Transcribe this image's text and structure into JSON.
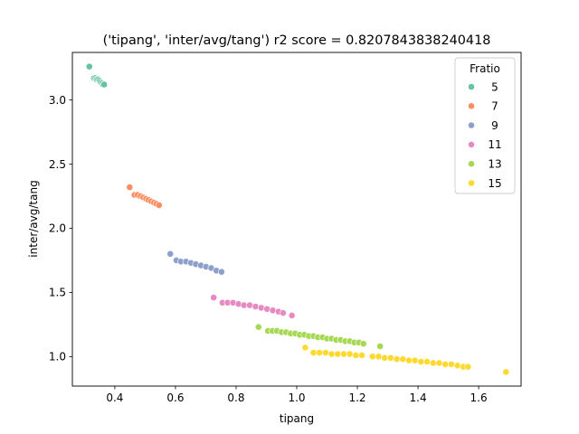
{
  "chart_data": {
    "type": "scatter",
    "title": "('tipang', 'inter/avg/tang') r2 score = 0.8207843838240418",
    "xlabel": "tipang",
    "ylabel": "inter/avg/tang",
    "xlim": [
      0.26,
      1.74
    ],
    "ylim": [
      0.77,
      3.37
    ],
    "xticks": [
      0.4,
      0.6,
      0.8,
      1.0,
      1.2,
      1.4,
      1.6
    ],
    "xtick_labels": [
      "0.4",
      "0.6",
      "0.8",
      "1.0",
      "1.2",
      "1.4",
      "1.6"
    ],
    "yticks": [
      1.0,
      1.5,
      2.0,
      2.5,
      3.0
    ],
    "ytick_labels": [
      "1.0",
      "1.5",
      "2.0",
      "2.5",
      "3.0"
    ],
    "grid": false,
    "legend": {
      "title": "Fratio",
      "placement": "top-right"
    },
    "series": [
      {
        "name": "5",
        "color": "#66c2a5",
        "points": [
          [
            0.316,
            3.26
          ],
          [
            0.331,
            3.17
          ],
          [
            0.336,
            3.17
          ],
          [
            0.34,
            3.16
          ],
          [
            0.345,
            3.16
          ],
          [
            0.349,
            3.15
          ],
          [
            0.353,
            3.14
          ],
          [
            0.357,
            3.13
          ],
          [
            0.361,
            3.12
          ],
          [
            0.365,
            3.12
          ]
        ]
      },
      {
        "name": "7",
        "color": "#fc8d62",
        "points": [
          [
            0.449,
            2.32
          ],
          [
            0.465,
            2.26
          ],
          [
            0.475,
            2.26
          ],
          [
            0.485,
            2.25
          ],
          [
            0.494,
            2.24
          ],
          [
            0.503,
            2.23
          ],
          [
            0.511,
            2.22
          ],
          [
            0.52,
            2.21
          ],
          [
            0.529,
            2.2
          ],
          [
            0.537,
            2.19
          ],
          [
            0.546,
            2.18
          ]
        ]
      },
      {
        "name": "9",
        "color": "#8da0cb",
        "points": [
          [
            0.583,
            1.8
          ],
          [
            0.603,
            1.75
          ],
          [
            0.618,
            1.74
          ],
          [
            0.635,
            1.74
          ],
          [
            0.651,
            1.73
          ],
          [
            0.667,
            1.72
          ],
          [
            0.684,
            1.71
          ],
          [
            0.701,
            1.7
          ],
          [
            0.718,
            1.69
          ],
          [
            0.735,
            1.67
          ],
          [
            0.752,
            1.66
          ]
        ]
      },
      {
        "name": "11",
        "color": "#e78ac3",
        "points": [
          [
            0.726,
            1.46
          ],
          [
            0.755,
            1.42
          ],
          [
            0.772,
            1.42
          ],
          [
            0.79,
            1.42
          ],
          [
            0.808,
            1.41
          ],
          [
            0.826,
            1.4
          ],
          [
            0.845,
            1.4
          ],
          [
            0.864,
            1.39
          ],
          [
            0.883,
            1.38
          ],
          [
            0.902,
            1.37
          ],
          [
            0.921,
            1.36
          ],
          [
            0.94,
            1.35
          ],
          [
            0.955,
            1.34
          ],
          [
            0.984,
            1.32
          ]
        ]
      },
      {
        "name": "13",
        "color": "#a6d854",
        "points": [
          [
            0.874,
            1.23
          ],
          [
            0.905,
            1.2
          ],
          [
            0.92,
            1.2
          ],
          [
            0.935,
            1.2
          ],
          [
            0.95,
            1.19
          ],
          [
            0.965,
            1.19
          ],
          [
            0.98,
            1.18
          ],
          [
            0.995,
            1.18
          ],
          [
            1.01,
            1.17
          ],
          [
            1.025,
            1.17
          ],
          [
            1.04,
            1.16
          ],
          [
            1.055,
            1.16
          ],
          [
            1.07,
            1.15
          ],
          [
            1.085,
            1.15
          ],
          [
            1.1,
            1.14
          ],
          [
            1.115,
            1.14
          ],
          [
            1.13,
            1.13
          ],
          [
            1.145,
            1.13
          ],
          [
            1.16,
            1.12
          ],
          [
            1.175,
            1.12
          ],
          [
            1.19,
            1.11
          ],
          [
            1.205,
            1.11
          ],
          [
            1.22,
            1.1
          ],
          [
            1.275,
            1.08
          ]
        ]
      },
      {
        "name": "15",
        "color": "#ffd92f",
        "points": [
          [
            1.028,
            1.07
          ],
          [
            1.055,
            1.03
          ],
          [
            1.075,
            1.03
          ],
          [
            1.095,
            1.03
          ],
          [
            1.115,
            1.02
          ],
          [
            1.135,
            1.02
          ],
          [
            1.155,
            1.02
          ],
          [
            1.175,
            1.02
          ],
          [
            1.195,
            1.01
          ],
          [
            1.215,
            1.01
          ],
          [
            1.25,
            1.0
          ],
          [
            1.27,
            1.0
          ],
          [
            1.29,
            0.99
          ],
          [
            1.31,
            0.99
          ],
          [
            1.33,
            0.98
          ],
          [
            1.35,
            0.98
          ],
          [
            1.37,
            0.97
          ],
          [
            1.39,
            0.97
          ],
          [
            1.41,
            0.96
          ],
          [
            1.43,
            0.96
          ],
          [
            1.45,
            0.95
          ],
          [
            1.47,
            0.95
          ],
          [
            1.49,
            0.94
          ],
          [
            1.51,
            0.94
          ],
          [
            1.53,
            0.93
          ],
          [
            1.55,
            0.92
          ],
          [
            1.565,
            0.92
          ],
          [
            1.69,
            0.88
          ]
        ]
      }
    ]
  }
}
